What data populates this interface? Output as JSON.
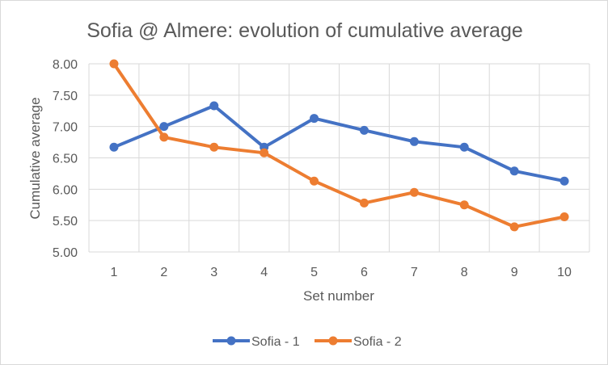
{
  "chart_data": {
    "type": "line",
    "title": "Sofia @ Almere: evolution of cumulative average",
    "xlabel": "Set number",
    "ylabel": "Cumulative average",
    "categories": [
      "1",
      "2",
      "3",
      "4",
      "5",
      "6",
      "7",
      "8",
      "9",
      "10"
    ],
    "ylim": [
      5.0,
      8.0
    ],
    "yticks": [
      "5.00",
      "5.50",
      "6.00",
      "6.50",
      "7.00",
      "7.50",
      "8.00"
    ],
    "grid": true,
    "legend_position": "bottom",
    "series": [
      {
        "name": "Sofia - 1",
        "color": "#4472c4",
        "values": [
          6.67,
          7.0,
          7.33,
          6.67,
          7.13,
          6.94,
          6.76,
          6.67,
          6.29,
          6.13
        ]
      },
      {
        "name": "Sofia - 2",
        "color": "#ed7d31",
        "values": [
          8.0,
          6.83,
          6.67,
          6.58,
          6.13,
          5.78,
          5.95,
          5.75,
          5.4,
          5.56
        ]
      }
    ]
  }
}
